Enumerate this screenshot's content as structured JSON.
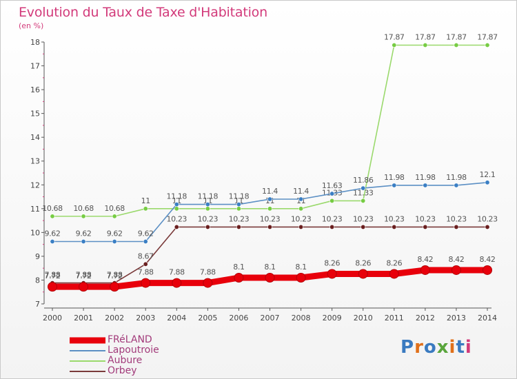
{
  "title": "Evolution du Taux de Taxe d'Habitation",
  "subtitle": "(en %)",
  "logo": {
    "text": "Proxiti",
    "colors": [
      "#3a7ac0",
      "#e0701a",
      "#3a7ac0",
      "#59a53c",
      "#e0701a",
      "#3a7ac0",
      "#d23a7a"
    ]
  },
  "chart_data": {
    "type": "line",
    "x": [
      2000,
      2001,
      2002,
      2003,
      2004,
      2005,
      2006,
      2007,
      2008,
      2009,
      2010,
      2011,
      2012,
      2013,
      2014
    ],
    "ylim": [
      7,
      18
    ],
    "yticks": [
      7,
      8,
      9,
      10,
      11,
      12,
      13,
      14,
      15,
      16,
      17,
      18
    ],
    "grid": false,
    "legend_position": "bottom-left",
    "series": [
      {
        "name": "FRéLAND",
        "color": "#e8000b",
        "values": [
          7.72,
          7.72,
          7.72,
          7.88,
          7.88,
          7.88,
          8.1,
          8.1,
          8.1,
          8.26,
          8.26,
          8.26,
          8.42,
          8.42,
          8.42
        ],
        "labels": [
          "7.72",
          "7.72",
          "7.72",
          "7.88",
          "7.88",
          "7.88",
          "8.1",
          "8.1",
          "8.1",
          "8.26",
          "8.26",
          "8.26",
          "8.42",
          "8.42",
          "8.42"
        ]
      },
      {
        "name": "Lapoutroie",
        "color": "#5b8fc4",
        "marker": "#3b7fc4",
        "values": [
          9.62,
          9.62,
          9.62,
          9.62,
          11.18,
          11.18,
          11.18,
          11.4,
          11.4,
          11.63,
          11.86,
          11.98,
          11.98,
          11.98,
          12.1
        ],
        "labels": [
          "9.62",
          "9.62",
          "9.62",
          "9.62",
          "11.18",
          "11.18",
          "11.18",
          "11.4",
          "11.4",
          "11.63",
          "11.86",
          "11.98",
          "11.98",
          "11.98",
          "12.1"
        ]
      },
      {
        "name": "Aubure",
        "color": "#9ad96c",
        "marker": "#77cc44",
        "values": [
          10.68,
          10.68,
          10.68,
          11,
          11,
          11,
          11,
          11,
          11,
          11.33,
          11.33,
          17.87,
          17.87,
          17.87,
          17.87
        ],
        "labels": [
          "10.68",
          "10.68",
          "10.68",
          "11",
          "11",
          "11",
          "11",
          "11",
          "11",
          "11.33",
          "11.33",
          "17.87",
          "17.87",
          "17.87",
          "17.87"
        ]
      },
      {
        "name": "Orbey",
        "color": "#7a3a3a",
        "marker": "#6a1f1f",
        "values": [
          7.88,
          7.88,
          7.88,
          8.67,
          10.23,
          10.23,
          10.23,
          10.23,
          10.23,
          10.23,
          10.23,
          10.23,
          10.23,
          10.23,
          10.23
        ],
        "labels": [
          "7.88",
          "7.88",
          "7.88",
          "8.67",
          "10.23",
          "10.23",
          "10.23",
          "10.23",
          "10.23",
          "10.23",
          "10.23",
          "10.23",
          "10.23",
          "10.23",
          "10.23"
        ]
      }
    ]
  }
}
